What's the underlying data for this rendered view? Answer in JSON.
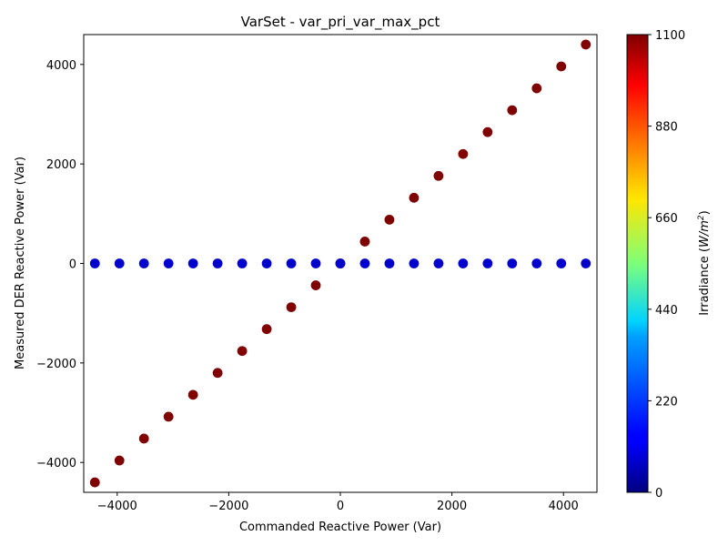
{
  "chart_data": {
    "type": "scatter",
    "title": "VarSet - var_pri_var_max_pct",
    "xlabel": "Commanded Reactive Power (Var)",
    "ylabel": "Measured DER Reactive Power (Var)",
    "xlim": [
      -4600,
      4600
    ],
    "ylim": [
      -4600,
      4600
    ],
    "xticks": [
      -4000,
      -2000,
      0,
      2000,
      4000
    ],
    "yticks": [
      -4000,
      -2000,
      0,
      2000,
      4000
    ],
    "xtick_labels": [
      "−4000",
      "−2000",
      "0",
      "2000",
      "4000"
    ],
    "ytick_labels": [
      "−4000",
      "−2000",
      "0",
      "2000",
      "4000"
    ],
    "grid": false,
    "colormap": "jet",
    "colorbar": {
      "label": "Irradiance ($W/m^2$)",
      "label_main": "Irradiance (",
      "label_unit": "W/m",
      "label_exp": "2",
      "label_close": ")",
      "min": 0,
      "max": 1100,
      "ticks": [
        0,
        220,
        440,
        660,
        880,
        1100
      ]
    },
    "series": [
      {
        "color_value": 1100,
        "color": "#800000",
        "x": [
          -4400,
          -3960,
          -3520,
          -3080,
          -2640,
          -2200,
          -1760,
          -1320,
          -880,
          -440,
          0,
          440,
          880,
          1320,
          1760,
          2200,
          2640,
          3080,
          3520,
          3960,
          4400
        ],
        "y": [
          -4400,
          -3960,
          -3520,
          -3080,
          -2640,
          -2200,
          -1760,
          -1320,
          -880,
          -440,
          0,
          440,
          880,
          1320,
          1760,
          2200,
          2640,
          3080,
          3520,
          3960,
          4400
        ]
      },
      {
        "color_value": 100,
        "color": "#0000cc",
        "x": [
          -4400,
          -3960,
          -3520,
          -3080,
          -2640,
          -2200,
          -1760,
          -1320,
          -880,
          -440,
          0,
          440,
          880,
          1320,
          1760,
          2200,
          2640,
          3080,
          3520,
          3960,
          4400
        ],
        "y": [
          0,
          0,
          0,
          0,
          0,
          0,
          0,
          0,
          0,
          0,
          0,
          0,
          0,
          0,
          0,
          0,
          0,
          0,
          0,
          0,
          0
        ]
      }
    ]
  }
}
